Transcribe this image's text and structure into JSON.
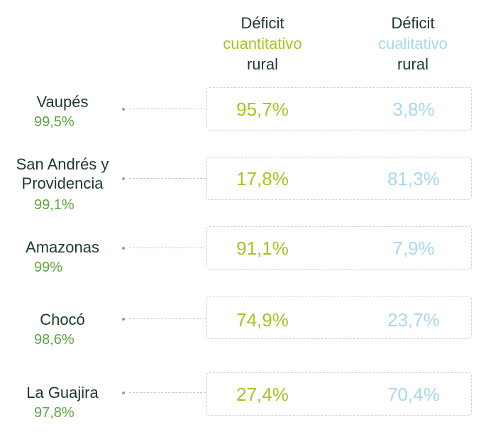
{
  "headers": {
    "quant": {
      "line1": "Déficit",
      "line2": "cuantitativo",
      "line3": "rural"
    },
    "qual": {
      "line1": "Déficit",
      "line2": "cualitativo",
      "line3": "rural"
    }
  },
  "colors": {
    "quantitative": "#a7c423",
    "qualitative": "#a8d8ec",
    "department_percent": "#5ca640",
    "text": "#1c3a2b"
  },
  "chart_data": {
    "type": "table",
    "columns": [
      "Déficit cuantitativo rural",
      "Déficit cualitativo rural"
    ],
    "rows": [
      {
        "department": "Vaupés",
        "percent": "99,5%",
        "quantitative": "95,7%",
        "qualitative": "3,8%"
      },
      {
        "department": "San Andrés y Providencia",
        "percent": "99,1%",
        "quantitative": "17,8%",
        "qualitative": "81,3%"
      },
      {
        "department": "Amazonas",
        "percent": "99%",
        "quantitative": "91,1%",
        "qualitative": "7,9%"
      },
      {
        "department": "Chocó",
        "percent": "98,6%",
        "quantitative": "74,9%",
        "qualitative": "23,7%"
      },
      {
        "department": "La Guajira",
        "percent": "97,8%",
        "quantitative": "27,4%",
        "qualitative": "70,4%"
      }
    ]
  }
}
